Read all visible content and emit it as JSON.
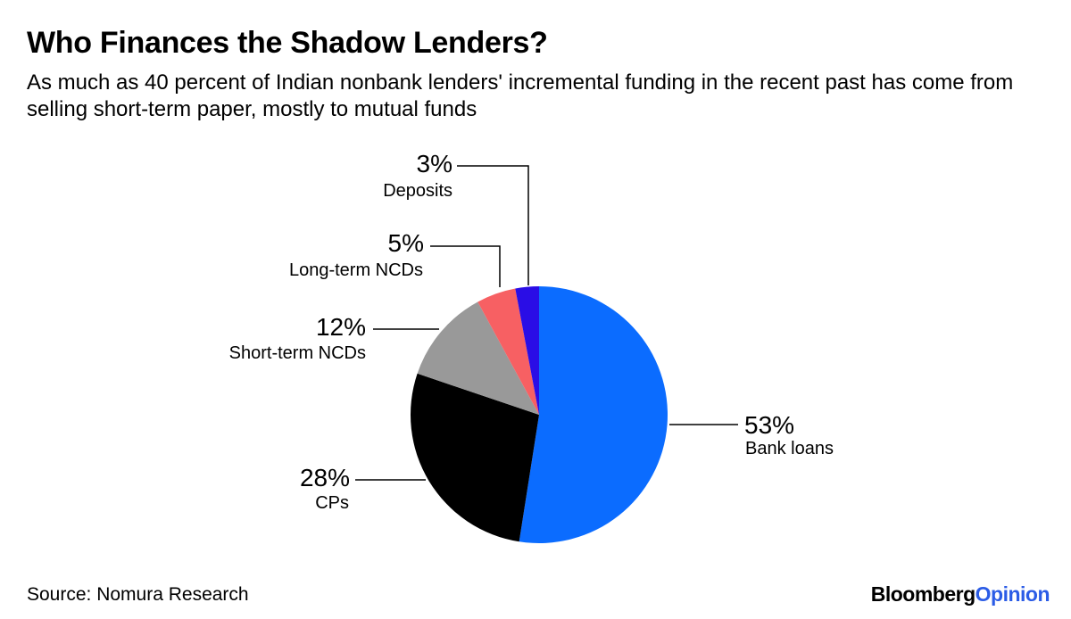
{
  "title": "Who Finances the Shadow Lenders?",
  "subtitle": "As much as 40 percent of Indian nonbank lenders' incremental funding in the recent past has come from selling short-term paper, mostly to mutual funds",
  "source": "Source: Nomura Research",
  "brand": {
    "part1": "Bloomberg",
    "part2": "Opinion"
  },
  "chart_data": {
    "type": "pie",
    "unit": "%",
    "slices": [
      {
        "label": "Bank loans",
        "value": 53,
        "value_label": "53%",
        "color": "#0b6cff"
      },
      {
        "label": "CPs",
        "value": 28,
        "value_label": "28%",
        "color": "#000000"
      },
      {
        "label": "Short-term NCDs",
        "value": 12,
        "value_label": "12%",
        "color": "#999999"
      },
      {
        "label": "Long-term NCDs",
        "value": 5,
        "value_label": "5%",
        "color": "#f76063"
      },
      {
        "label": "Deposits",
        "value": 3,
        "value_label": "3%",
        "color": "#2a0de6"
      }
    ]
  }
}
